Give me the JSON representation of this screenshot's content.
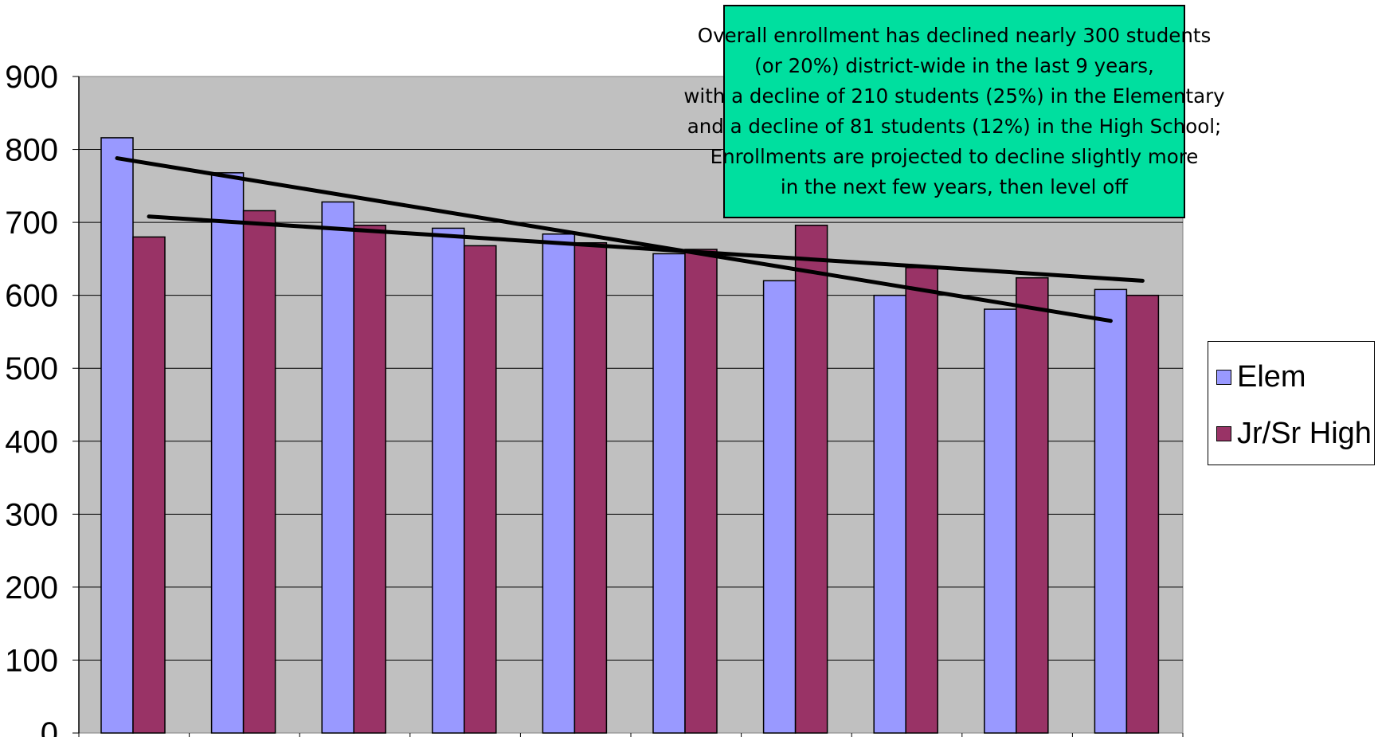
{
  "chart_data": {
    "type": "bar",
    "title": "",
    "xlabel": "",
    "ylabel": "",
    "categories": [
      "",
      "",
      "",
      "",
      "",
      "",
      "",
      "",
      "",
      ""
    ],
    "ylim": [
      0,
      900
    ],
    "yticks": [
      0,
      100,
      200,
      300,
      400,
      500,
      600,
      700,
      800,
      900
    ],
    "grid": true,
    "legend_position": "right",
    "series": [
      {
        "name": "Elem",
        "color": "#9999ff",
        "values": [
          816,
          768,
          728,
          692,
          684,
          657,
          620,
          600,
          581,
          608
        ]
      },
      {
        "name": "Jr/Sr High",
        "color": "#993366",
        "values": [
          680,
          716,
          696,
          668,
          672,
          663,
          696,
          638,
          624,
          600
        ]
      }
    ],
    "trendlines": [
      {
        "series": "Elem",
        "type": "linear",
        "start": 788,
        "end": 565
      },
      {
        "series": "Jr/Sr High",
        "type": "linear",
        "start": 708,
        "end": 620
      }
    ],
    "plot_background": "#c0c0c0",
    "annotation": {
      "background": "#00df9f",
      "lines": [
        "Overall enrollment has declined nearly 300 students",
        "(or 20%) district-wide in the last 9 years,",
        "with a decline of 210 students (25%) in the Elementary",
        "and a decline of 81 students (12%) in the High School;",
        "Enrollments are projected to decline slightly more",
        "in the next few years, then level off"
      ]
    }
  }
}
